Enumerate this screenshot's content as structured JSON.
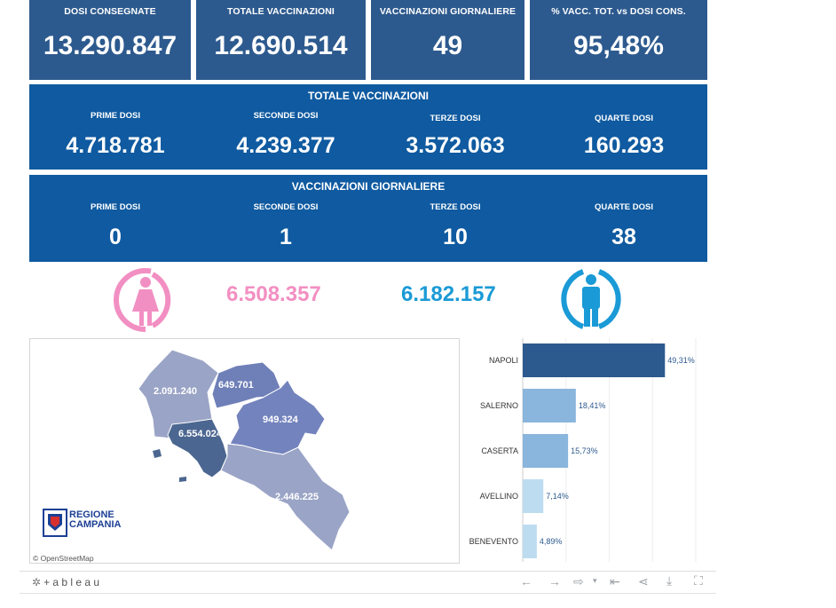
{
  "kpis": [
    {
      "label": "DOSI  CONSEGNATE",
      "value": "13.290.847"
    },
    {
      "label": "TOTALE VACCINAZIONI",
      "value": "12.690.514"
    },
    {
      "label": "VACCINAZIONI GIORNALIERE",
      "value": "49"
    },
    {
      "label": "% VACC. TOT. vs DOSI CONS.",
      "value": "95,48%"
    }
  ],
  "totale": {
    "title": "TOTALE VACCINAZIONI",
    "items": [
      {
        "label": "PRIME DOSI",
        "value": "4.718.781"
      },
      {
        "label": "SECONDE DOSI",
        "value": "4.239.377"
      },
      {
        "label": "TERZE DOSI",
        "value": "3.572.063"
      },
      {
        "label": "QUARTE DOSI",
        "value": "160.293"
      }
    ]
  },
  "giornaliere": {
    "title": "VACCINAZIONI GIORNALIERE",
    "items": [
      {
        "label": "PRIME DOSI",
        "value": "0"
      },
      {
        "label": "SECONDE DOSI",
        "value": "1"
      },
      {
        "label": "TERZE DOSI",
        "value": "10"
      },
      {
        "label": "QUARTE DOSI",
        "value": "38"
      }
    ]
  },
  "gender": {
    "female": "6.508.357",
    "male": "6.182.157",
    "female_color": "#f28fc2",
    "male_color": "#1a9ad6"
  },
  "map": {
    "regions": [
      {
        "name": "caserta",
        "value": "2.091.240"
      },
      {
        "name": "benevento",
        "value": "649.701"
      },
      {
        "name": "avellino",
        "value": "949.324"
      },
      {
        "name": "napoli",
        "value": "6.554.024"
      },
      {
        "name": "salerno",
        "value": "2.446.225"
      }
    ],
    "logo_line1": "REGIONE",
    "logo_line2": "CAMPANIA",
    "attribution": "© OpenStreetMap"
  },
  "chart_data": {
    "type": "bar",
    "orientation": "horizontal",
    "categories": [
      "NAPOLI",
      "SALERNO",
      "CASERTA",
      "AVELLINO",
      "BENEVENTO"
    ],
    "values": [
      49.31,
      18.41,
      15.73,
      7.14,
      4.89
    ],
    "value_labels": [
      "49,31%",
      "18,41%",
      "15,73%",
      "7,14%",
      "4,89%"
    ],
    "colors": [
      "#2d5a8e",
      "#8ab5dc",
      "#8ab5dc",
      "#bddcf0",
      "#bddcf0"
    ],
    "xlim": [
      0,
      60
    ],
    "grid": true
  },
  "footer": {
    "brand": "+ a b l e a u"
  }
}
